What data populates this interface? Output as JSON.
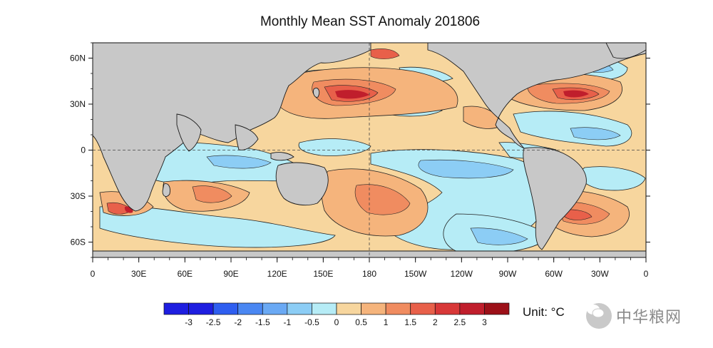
{
  "title": "Monthly Mean SST Anomaly 201806",
  "map": {
    "lat_ticks": [
      {
        "lat": 60,
        "label": "60N"
      },
      {
        "lat": 30,
        "label": "30N"
      },
      {
        "lat": 0,
        "label": "0"
      },
      {
        "lat": -30,
        "label": "30S"
      },
      {
        "lat": -60,
        "label": "60S"
      }
    ],
    "lon_ticks": [
      {
        "lon": 0,
        "label": "0"
      },
      {
        "lon": 30,
        "label": "30E"
      },
      {
        "lon": 60,
        "label": "60E"
      },
      {
        "lon": 90,
        "label": "90E"
      },
      {
        "lon": 120,
        "label": "120E"
      },
      {
        "lon": 150,
        "label": "150E"
      },
      {
        "lon": 180,
        "label": "180"
      },
      {
        "lon": 210,
        "label": "150W"
      },
      {
        "lon": 240,
        "label": "120W"
      },
      {
        "lon": 270,
        "label": "90W"
      },
      {
        "lon": 300,
        "label": "60W"
      },
      {
        "lon": 330,
        "label": "30W"
      },
      {
        "lon": 360,
        "label": "0"
      }
    ],
    "land_color": "#c8c8c8"
  },
  "colorbar": {
    "labels": [
      "-3",
      "-2.5",
      "-2",
      "-1.5",
      "-1",
      "-0.5",
      "0",
      "0.5",
      "1",
      "1.5",
      "2",
      "2.5",
      "3"
    ],
    "colors": [
      "#1e1ee0",
      "#2e5ef0",
      "#4a87f2",
      "#6aa9f4",
      "#8ccdf5",
      "#b6ecf6",
      "#f7d69e",
      "#f5b47c",
      "#f08c60",
      "#e8604a",
      "#d83838",
      "#c01e2c",
      "#9c1018"
    ],
    "unit_label": "Unit: °C"
  },
  "watermark": "中华粮网"
}
